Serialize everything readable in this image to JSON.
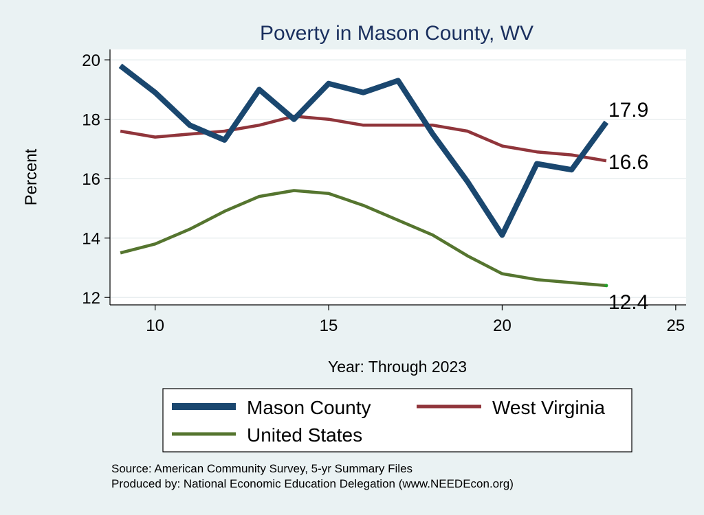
{
  "chart_data": {
    "type": "line",
    "title": "Poverty in Mason County, WV",
    "xlabel": "Year: Through 2023",
    "ylabel": "Percent",
    "xlim": [
      8.7,
      25.3
    ],
    "ylim": [
      11.75,
      20.35
    ],
    "xticks": [
      10,
      15,
      20,
      25
    ],
    "yticks": [
      12,
      14,
      16,
      18,
      20
    ],
    "x_tick_labels": [
      "10",
      "15",
      "20",
      "25"
    ],
    "y_tick_labels": [
      "12",
      "14",
      "16",
      "18",
      "20"
    ],
    "grid": true,
    "legend_position": "bottom",
    "x": [
      9,
      10,
      11,
      12,
      13,
      14,
      15,
      16,
      17,
      18,
      19,
      20,
      21,
      22,
      23
    ],
    "series": [
      {
        "name": "Mason County",
        "color": "#1a476f",
        "values": [
          19.8,
          18.9,
          17.8,
          17.3,
          19.0,
          18.0,
          19.2,
          18.9,
          19.3,
          17.5,
          15.9,
          14.1,
          16.5,
          16.3,
          17.9
        ],
        "end_label": "17.9"
      },
      {
        "name": "West Virginia",
        "color": "#90353b",
        "values": [
          17.6,
          17.4,
          17.5,
          17.6,
          17.8,
          18.1,
          18.0,
          17.8,
          17.8,
          17.8,
          17.6,
          17.1,
          16.9,
          16.8,
          16.6
        ],
        "end_label": "16.6"
      },
      {
        "name": "United States",
        "color": "#55752f",
        "values": [
          13.5,
          13.8,
          14.3,
          14.9,
          15.4,
          15.6,
          15.5,
          15.1,
          14.6,
          14.1,
          13.4,
          12.8,
          12.6,
          12.5,
          12.4
        ],
        "end_label": "12.4"
      }
    ]
  },
  "source_line": "Source: American Community Survey, 5-yr Summary Files",
  "produced_line": "Produced by: National Economic Education Delegation (www.NEEDEcon.org)"
}
